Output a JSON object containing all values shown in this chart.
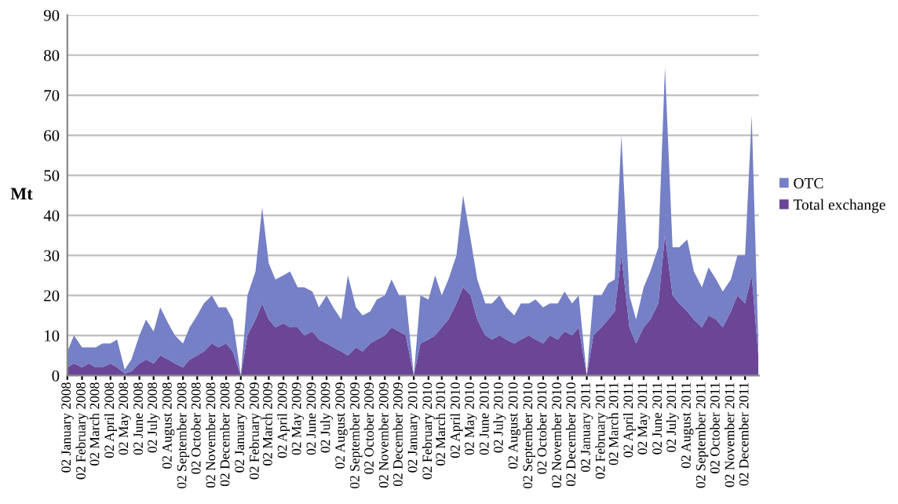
{
  "chart_data": {
    "type": "area",
    "stacked": true,
    "ylabel": "Mt",
    "x": [
      "2008-01-02",
      "2008-01-16",
      "2008-02-02",
      "2008-02-16",
      "2008-03-02",
      "2008-03-16",
      "2008-04-02",
      "2008-04-16",
      "2008-05-02",
      "2008-05-16",
      "2008-06-02",
      "2008-06-16",
      "2008-07-02",
      "2008-07-16",
      "2008-08-02",
      "2008-08-16",
      "2008-09-02",
      "2008-09-16",
      "2008-10-02",
      "2008-10-16",
      "2008-11-02",
      "2008-11-16",
      "2008-12-02",
      "2008-12-16",
      "2009-01-02",
      "2009-01-16",
      "2009-02-02",
      "2009-02-16",
      "2009-03-02",
      "2009-03-16",
      "2009-04-02",
      "2009-04-16",
      "2009-05-02",
      "2009-05-16",
      "2009-06-02",
      "2009-06-16",
      "2009-07-02",
      "2009-07-16",
      "2009-08-02",
      "2009-08-16",
      "2009-09-02",
      "2009-09-16",
      "2009-10-02",
      "2009-10-16",
      "2009-11-02",
      "2009-11-16",
      "2009-12-02",
      "2009-12-16",
      "2010-01-02",
      "2010-01-16",
      "2010-02-02",
      "2010-02-16",
      "2010-03-02",
      "2010-03-16",
      "2010-04-02",
      "2010-04-16",
      "2010-05-02",
      "2010-05-16",
      "2010-06-02",
      "2010-06-16",
      "2010-07-02",
      "2010-07-16",
      "2010-08-02",
      "2010-08-16",
      "2010-09-02",
      "2010-09-16",
      "2010-10-02",
      "2010-10-16",
      "2010-11-02",
      "2010-11-16",
      "2010-12-02",
      "2010-12-16",
      "2011-01-02",
      "2011-01-16",
      "2011-02-02",
      "2011-02-16",
      "2011-03-02",
      "2011-03-16",
      "2011-04-02",
      "2011-04-16",
      "2011-05-02",
      "2011-05-16",
      "2011-06-02",
      "2011-06-16",
      "2011-07-02",
      "2011-07-16",
      "2011-08-02",
      "2011-08-16",
      "2011-09-02",
      "2011-09-16",
      "2011-10-02",
      "2011-10-16",
      "2011-11-02",
      "2011-11-16",
      "2011-12-02",
      "2011-12-16",
      "2011-12-30"
    ],
    "series": [
      {
        "name": "Total exchange",
        "color": "#6b4596",
        "values": [
          2,
          3,
          2,
          3,
          2,
          2,
          3,
          2,
          0.5,
          1,
          3,
          4,
          3,
          5,
          4,
          3,
          2,
          4,
          5,
          6,
          8,
          7,
          8,
          6,
          0,
          10,
          14,
          18,
          14,
          12,
          13,
          12,
          12,
          10,
          11,
          9,
          8,
          7,
          6,
          5,
          7,
          6,
          8,
          9,
          10,
          12,
          11,
          10,
          0,
          8,
          9,
          10,
          12,
          14,
          18,
          22,
          20,
          14,
          10,
          9,
          10,
          9,
          8,
          9,
          10,
          9,
          8,
          10,
          9,
          11,
          10,
          12,
          0,
          10,
          12,
          14,
          16,
          30,
          12,
          8,
          12,
          14,
          18,
          35,
          20,
          18,
          16,
          14,
          12,
          15,
          14,
          12,
          16,
          20,
          18,
          25,
          5
        ]
      },
      {
        "name": "OTC",
        "color": "#7580c6",
        "values": [
          4,
          7,
          5,
          4,
          5,
          6,
          5,
          7,
          1,
          3,
          7,
          10,
          8,
          12,
          9,
          7,
          6,
          8,
          10,
          12,
          12,
          10,
          9,
          8,
          0,
          10,
          12,
          24,
          14,
          12,
          12,
          14,
          10,
          12,
          10,
          8,
          12,
          10,
          8,
          20,
          10,
          9,
          8,
          10,
          10,
          12,
          9,
          10,
          0,
          12,
          10,
          15,
          8,
          10,
          12,
          23,
          14,
          10,
          8,
          9,
          10,
          8,
          7,
          9,
          8,
          10,
          9,
          8,
          9,
          10,
          8,
          8,
          0,
          10,
          8,
          9,
          8,
          30,
          8,
          6,
          10,
          12,
          14,
          42,
          12,
          14,
          18,
          12,
          10,
          12,
          10,
          9,
          8,
          10,
          12,
          40,
          3
        ]
      }
    ],
    "xlim": [
      "2008-01-02",
      "2011-12-31"
    ],
    "xticks": [
      {
        "value": "2008-01-02",
        "label": "02 January 2008"
      },
      {
        "value": "2008-02-02",
        "label": "02 February 2008"
      },
      {
        "value": "2008-03-02",
        "label": "02 March 2008"
      },
      {
        "value": "2008-04-02",
        "label": "02 April 2008"
      },
      {
        "value": "2008-05-02",
        "label": "02 May 2008"
      },
      {
        "value": "2008-06-02",
        "label": "02 June 2008"
      },
      {
        "value": "2008-07-02",
        "label": "02 July 2008"
      },
      {
        "value": "2008-08-02",
        "label": "02 August 2008"
      },
      {
        "value": "2008-09-02",
        "label": "02 September 2008"
      },
      {
        "value": "2008-10-02",
        "label": "02 October 2008"
      },
      {
        "value": "2008-11-02",
        "label": "02 November 2008"
      },
      {
        "value": "2008-12-02",
        "label": "02 December 2008"
      },
      {
        "value": "2009-01-02",
        "label": "02 January 2009"
      },
      {
        "value": "2009-02-02",
        "label": "02 February 2009"
      },
      {
        "value": "2009-03-02",
        "label": "02 March 2009"
      },
      {
        "value": "2009-04-02",
        "label": "02 April 2009"
      },
      {
        "value": "2009-05-02",
        "label": "02 May 2009"
      },
      {
        "value": "2009-06-02",
        "label": "02 June 2009"
      },
      {
        "value": "2009-07-02",
        "label": "02 July 2009"
      },
      {
        "value": "2009-08-02",
        "label": "02 August 2009"
      },
      {
        "value": "2009-09-02",
        "label": "02 September 2009"
      },
      {
        "value": "2009-10-02",
        "label": "02 October 2009"
      },
      {
        "value": "2009-11-02",
        "label": "02 November 2009"
      },
      {
        "value": "2009-12-02",
        "label": "02 December 2009"
      },
      {
        "value": "2010-01-02",
        "label": "02 January 2010"
      },
      {
        "value": "2010-02-02",
        "label": "02 February 2010"
      },
      {
        "value": "2010-03-02",
        "label": "02 March 2010"
      },
      {
        "value": "2010-04-02",
        "label": "02 April 2010"
      },
      {
        "value": "2010-05-02",
        "label": "02 May 2010"
      },
      {
        "value": "2010-06-02",
        "label": "02 June 2010"
      },
      {
        "value": "2010-07-02",
        "label": "02 July 2010"
      },
      {
        "value": "2010-08-02",
        "label": "02 August 2010"
      },
      {
        "value": "2010-09-02",
        "label": "02 September 2010"
      },
      {
        "value": "2010-10-02",
        "label": "02 October 2010"
      },
      {
        "value": "2010-11-02",
        "label": "02 November 2010"
      },
      {
        "value": "2010-12-02",
        "label": "02 December 2010"
      },
      {
        "value": "2011-01-02",
        "label": "02 January 2011"
      },
      {
        "value": "2011-02-02",
        "label": "02 February 2011"
      },
      {
        "value": "2011-03-02",
        "label": "02 March 2011"
      },
      {
        "value": "2011-04-02",
        "label": "02 April 2011"
      },
      {
        "value": "2011-05-02",
        "label": "02 May 2011"
      },
      {
        "value": "2011-06-02",
        "label": "02 June 2011"
      },
      {
        "value": "2011-07-02",
        "label": "02 July 2011"
      },
      {
        "value": "2011-08-02",
        "label": "02 August 2011"
      },
      {
        "value": "2011-09-02",
        "label": "02 September 2011"
      },
      {
        "value": "2011-10-02",
        "label": "02 October 2011"
      },
      {
        "value": "2011-11-02",
        "label": "02 November 2011"
      },
      {
        "value": "2011-12-02",
        "label": "02 December 2011"
      }
    ],
    "ylim": [
      0,
      90
    ],
    "yticks": [
      0,
      10,
      20,
      30,
      40,
      50,
      60,
      70,
      80,
      90
    ],
    "grid": "y",
    "legend": "right"
  }
}
